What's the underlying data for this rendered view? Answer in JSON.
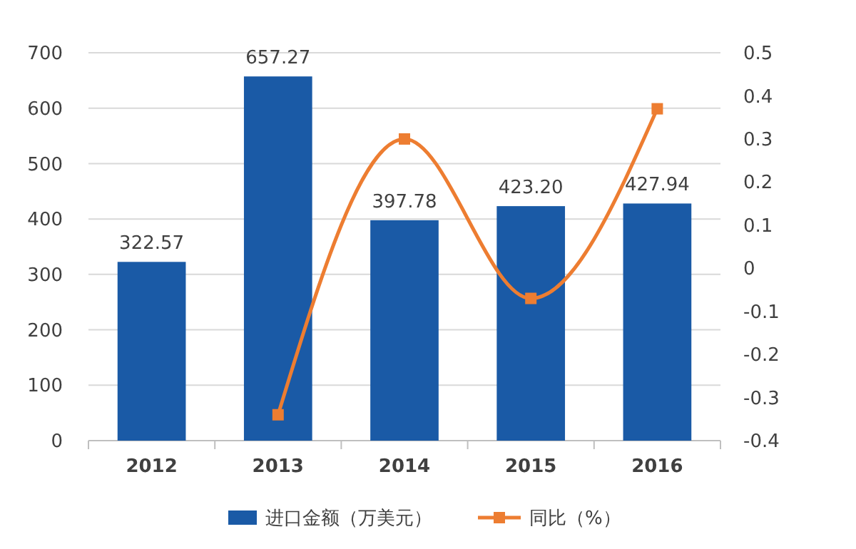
{
  "chart_data": {
    "type": "bar",
    "categories": [
      "2012",
      "2013",
      "2014",
      "2015",
      "2016"
    ],
    "series": [
      {
        "name": "进口金额（万美元）",
        "color": "#1a5aa6",
        "values": [
          322.57,
          657.27,
          397.78,
          423.2,
          427.94
        ],
        "value_labels": [
          "322.57",
          "657.27",
          "397.78",
          "423.20",
          "427.94"
        ]
      },
      {
        "name": "同比（%）",
        "type": "line",
        "axis": "y2",
        "color": "#ed7d31",
        "values": [
          null,
          -0.34,
          0.3,
          -0.07,
          0.37
        ],
        "marker": "square"
      }
    ],
    "ylim": [
      0,
      700
    ],
    "yticks": [
      0,
      100,
      200,
      300,
      400,
      500,
      600,
      700
    ],
    "y2lim": [
      -0.4,
      0.5
    ],
    "y2ticks": [
      -0.4,
      -0.3,
      -0.2,
      -0.1,
      0,
      0.1,
      0.2,
      0.3,
      0.4,
      0.5
    ],
    "grid": "y",
    "legend": "bottom"
  }
}
